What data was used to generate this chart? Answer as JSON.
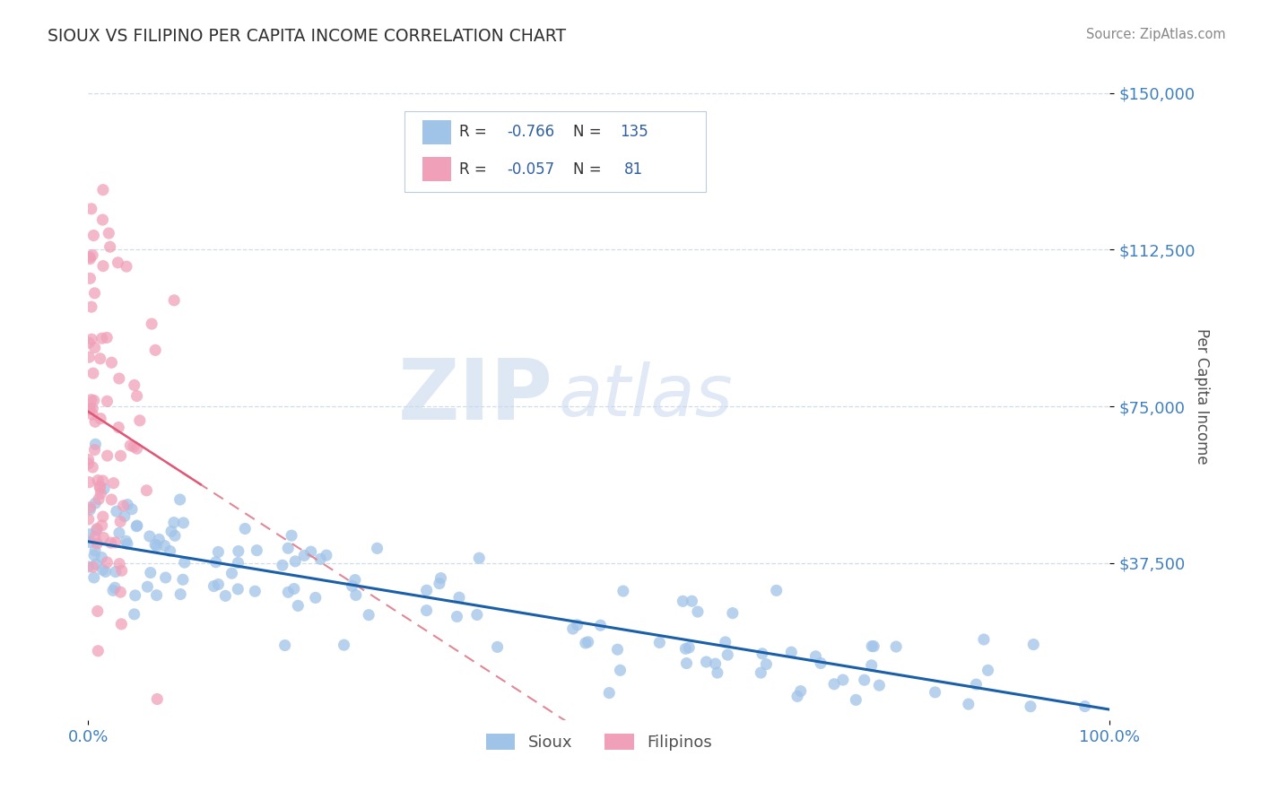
{
  "title": "SIOUX VS FILIPINO PER CAPITA INCOME CORRELATION CHART",
  "source": "Source: ZipAtlas.com",
  "ylabel": "Per Capita Income",
  "xlim": [
    0.0,
    1.0
  ],
  "ylim": [
    0,
    155000
  ],
  "yticks": [
    37500,
    75000,
    112500,
    150000
  ],
  "ytick_labels": [
    "$37,500",
    "$75,000",
    "$112,500",
    "$150,000"
  ],
  "xtick_labels": [
    "0.0%",
    "100.0%"
  ],
  "sioux_color": "#a0c4e8",
  "filipinos_color": "#f0a0b8",
  "trend_sioux_color": "#1a5fa8",
  "trend_filipinos_color": "#e05878",
  "trend_filipinos_dashed_color": "#e08898",
  "watermark_zip": "ZIP",
  "watermark_atlas": "atlas",
  "background_color": "#ffffff",
  "grid_color": "#d0dce8",
  "title_color": "#303030",
  "axis_label_color": "#505050",
  "tick_color": "#4080c0",
  "legend_color": "#3060a0",
  "sioux_R": -0.766,
  "sioux_N": 135,
  "filipinos_R": -0.057,
  "filipinos_N": 81,
  "sioux_seed": 12,
  "filipinos_seed": 99
}
